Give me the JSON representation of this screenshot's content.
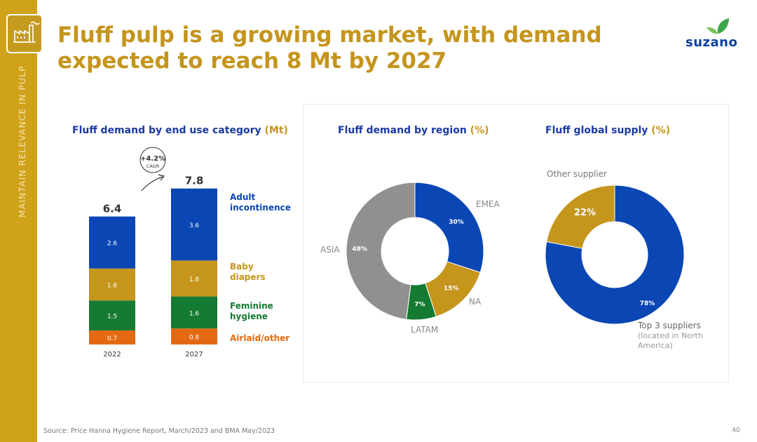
{
  "header": {
    "title_line1": "Fluff pulp is a growing market, with demand",
    "title_line2": "expected to reach 8 Mt by 2027",
    "logo_text": "suzano",
    "side_label": "MAINTAIN RELEVANCE IN PULP"
  },
  "colors": {
    "blue": "#0a46b4",
    "gold": "#c5951c",
    "green": "#157a32",
    "orange": "#e36a12",
    "grey": "#909090"
  },
  "chart_data": [
    {
      "type": "bar",
      "stacked": true,
      "title": "Fluff demand by end use category",
      "unit": "(Mt)",
      "categories": [
        "2022",
        "2027"
      ],
      "totals": [
        "6.4",
        "7.8"
      ],
      "cagr": "+4.2%",
      "cagr_label": "CAGR",
      "series": [
        {
          "name": "Airlaid/other",
          "values": [
            0.7,
            0.8
          ],
          "labels": [
            "0.7",
            "0.8"
          ]
        },
        {
          "name": "Feminine hygiene",
          "values": [
            1.5,
            1.6
          ],
          "labels": [
            "1.5",
            "1.6"
          ]
        },
        {
          "name": "Baby diapers",
          "values": [
            1.6,
            1.8
          ],
          "labels": [
            "1.6",
            "1.8"
          ]
        },
        {
          "name": "Adult incontinence",
          "values": [
            2.6,
            3.6
          ],
          "labels": [
            "2.6",
            "3.6"
          ]
        }
      ],
      "legend_lines": [
        [
          "Adult",
          "incontinence"
        ],
        [
          "Baby",
          "diapers"
        ],
        [
          "Feminine",
          "hygiene"
        ],
        [
          "Airlaid/other"
        ]
      ]
    },
    {
      "type": "pie",
      "donut": true,
      "title": "Fluff demand by region",
      "unit": "(%)",
      "slices": [
        {
          "name": "EMEA",
          "value": 30,
          "label": "30%"
        },
        {
          "name": "NA",
          "value": 15,
          "label": "15%"
        },
        {
          "name": "LATAM",
          "value": 7,
          "label": "7%"
        },
        {
          "name": "ASIA",
          "value": 48,
          "label": "48%"
        }
      ]
    },
    {
      "type": "pie",
      "donut": true,
      "title": "Fluff global supply",
      "unit": "(%)",
      "slices": [
        {
          "name": "Top 3 suppliers",
          "note": "(located in North America)",
          "value": 78,
          "label": "78%"
        },
        {
          "name": "Other supplier",
          "value": 22,
          "label": "22%"
        }
      ]
    }
  ],
  "footer": {
    "source": "Source: Price Hanna Hygiene Report, March/2023 and BMA May/2023",
    "page": "40"
  }
}
